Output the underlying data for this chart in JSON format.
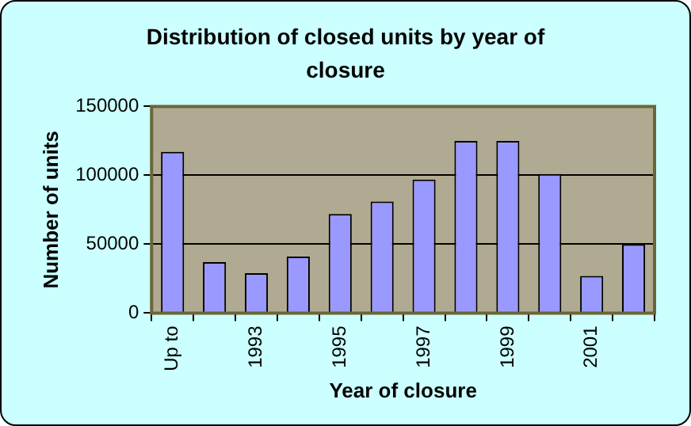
{
  "chart_data": {
    "type": "bar",
    "title": "Distribution of closed units by year of closure",
    "xlabel": "Year of closure",
    "ylabel": "Number of units",
    "categories": [
      "Up to",
      null,
      "1993",
      null,
      "1995",
      null,
      "1997",
      null,
      "1999",
      null,
      "2001",
      null
    ],
    "values": [
      117000,
      37000,
      29000,
      41000,
      72000,
      81000,
      97000,
      125000,
      125000,
      101000,
      27000,
      50000
    ],
    "color": "#9999ff",
    "ylim": [
      0,
      150000
    ],
    "yticks": [
      0,
      50000,
      100000,
      150000
    ],
    "grid": "y",
    "legend": false
  }
}
